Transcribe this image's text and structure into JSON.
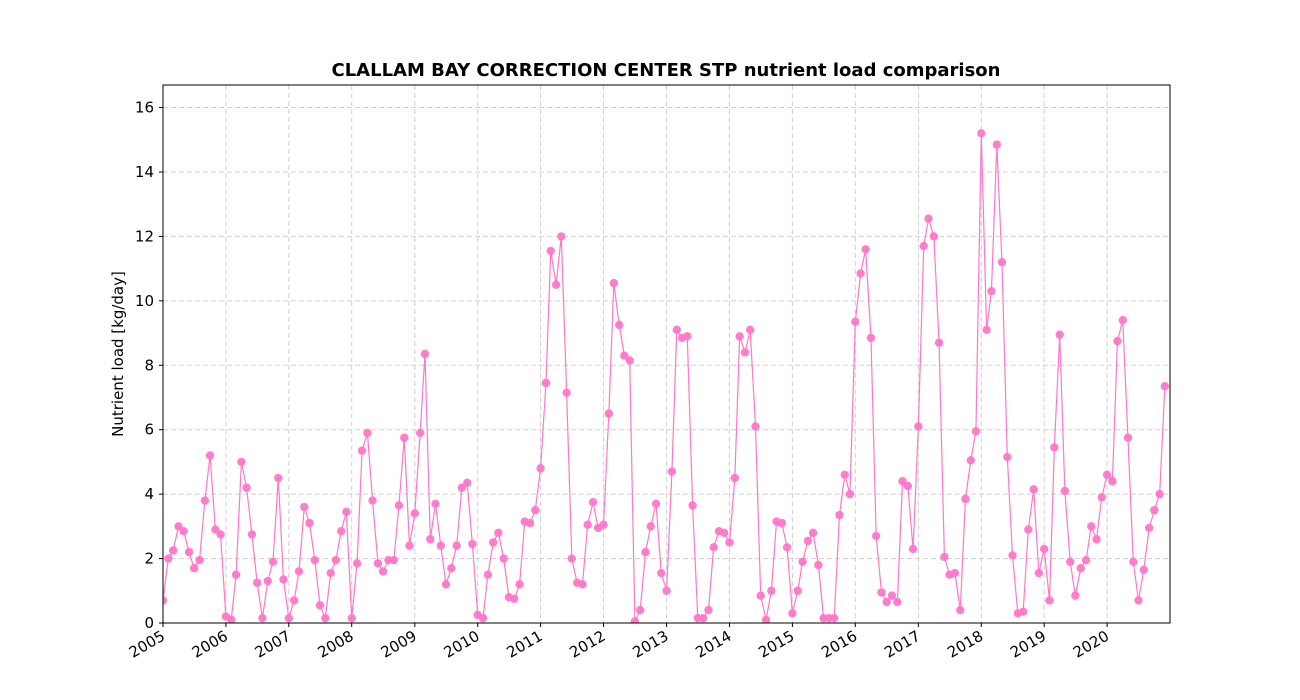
{
  "chart_data": {
    "type": "line",
    "title": "CLALLAM BAY CORRECTION CENTER STP nutrient load comparison",
    "xlabel": "",
    "ylabel": "Nutrient load [kg/day]",
    "ylim": [
      0,
      16.7
    ],
    "yticks": [
      0,
      2,
      4,
      6,
      8,
      10,
      12,
      14,
      16
    ],
    "xlim": [
      "2005-01-01",
      "2020-12-31"
    ],
    "xticks": [
      "2005",
      "2006",
      "2007",
      "2008",
      "2009",
      "2010",
      "2011",
      "2012",
      "2013",
      "2014",
      "2015",
      "2016",
      "2017",
      "2018",
      "2019",
      "2020"
    ],
    "grid": true,
    "color": "#ff77c8",
    "series": [
      {
        "start": "2005-01",
        "frequency": "monthly",
        "values": [
          0.7,
          2.0,
          2.25,
          3.0,
          2.85,
          2.2,
          1.7,
          1.95,
          3.8,
          5.2,
          2.9,
          2.75,
          0.2,
          0.1,
          1.5,
          5.0,
          4.2,
          2.75,
          1.25,
          0.15,
          1.3,
          1.9,
          4.5,
          1.35,
          0.15,
          0.7,
          1.6,
          3.6,
          3.1,
          1.95,
          0.55,
          0.15,
          1.55,
          1.95,
          2.85,
          3.45,
          0.15,
          1.85,
          5.35,
          5.9,
          3.8,
          1.85,
          1.6,
          1.95,
          1.95,
          3.65,
          5.75,
          2.4,
          3.4,
          5.9,
          8.35,
          2.6,
          3.7,
          2.4,
          1.2,
          1.7,
          2.4,
          4.2,
          4.35,
          2.45,
          0.25,
          0.15,
          1.5,
          2.5,
          2.8,
          2.0,
          0.8,
          0.75,
          1.2,
          3.15,
          3.1,
          3.5,
          4.8,
          7.45,
          11.55,
          10.5,
          12.0,
          7.15,
          2.0,
          1.25,
          1.2,
          3.05,
          3.75,
          2.95,
          3.05,
          6.5,
          10.55,
          9.25,
          8.3,
          8.15,
          0.05,
          0.4,
          2.2,
          3.0,
          3.7,
          1.55,
          1.0,
          4.7,
          9.1,
          8.85,
          8.9,
          3.65,
          0.15,
          0.15,
          0.4,
          2.35,
          2.85,
          2.8,
          2.5,
          4.5,
          8.9,
          8.4,
          9.1,
          6.1,
          0.85,
          0.1,
          1.0,
          3.15,
          3.1,
          2.35,
          0.3,
          1.0,
          1.9,
          2.55,
          2.8,
          1.8,
          0.15,
          0.15,
          0.15,
          3.35,
          4.6,
          4.0,
          9.35,
          10.85,
          11.6,
          8.85,
          2.7,
          0.95,
          0.65,
          0.85,
          0.65,
          4.4,
          4.25,
          2.3,
          6.1,
          11.7,
          12.55,
          12.0,
          8.7,
          2.05,
          1.5,
          1.55,
          0.4,
          3.85,
          5.05,
          5.95,
          15.2,
          9.1,
          10.3,
          14.85,
          11.2,
          5.15,
          2.1,
          0.3,
          0.35,
          2.9,
          4.15,
          1.55,
          2.3,
          0.7,
          5.45,
          8.95,
          4.1,
          1.9,
          0.85,
          1.7,
          1.95,
          3.0,
          2.6,
          3.9,
          4.6,
          4.4,
          8.75,
          9.4,
          5.75,
          1.9,
          0.7,
          1.65,
          2.95,
          3.5,
          4.0,
          7.35
        ]
      }
    ]
  }
}
